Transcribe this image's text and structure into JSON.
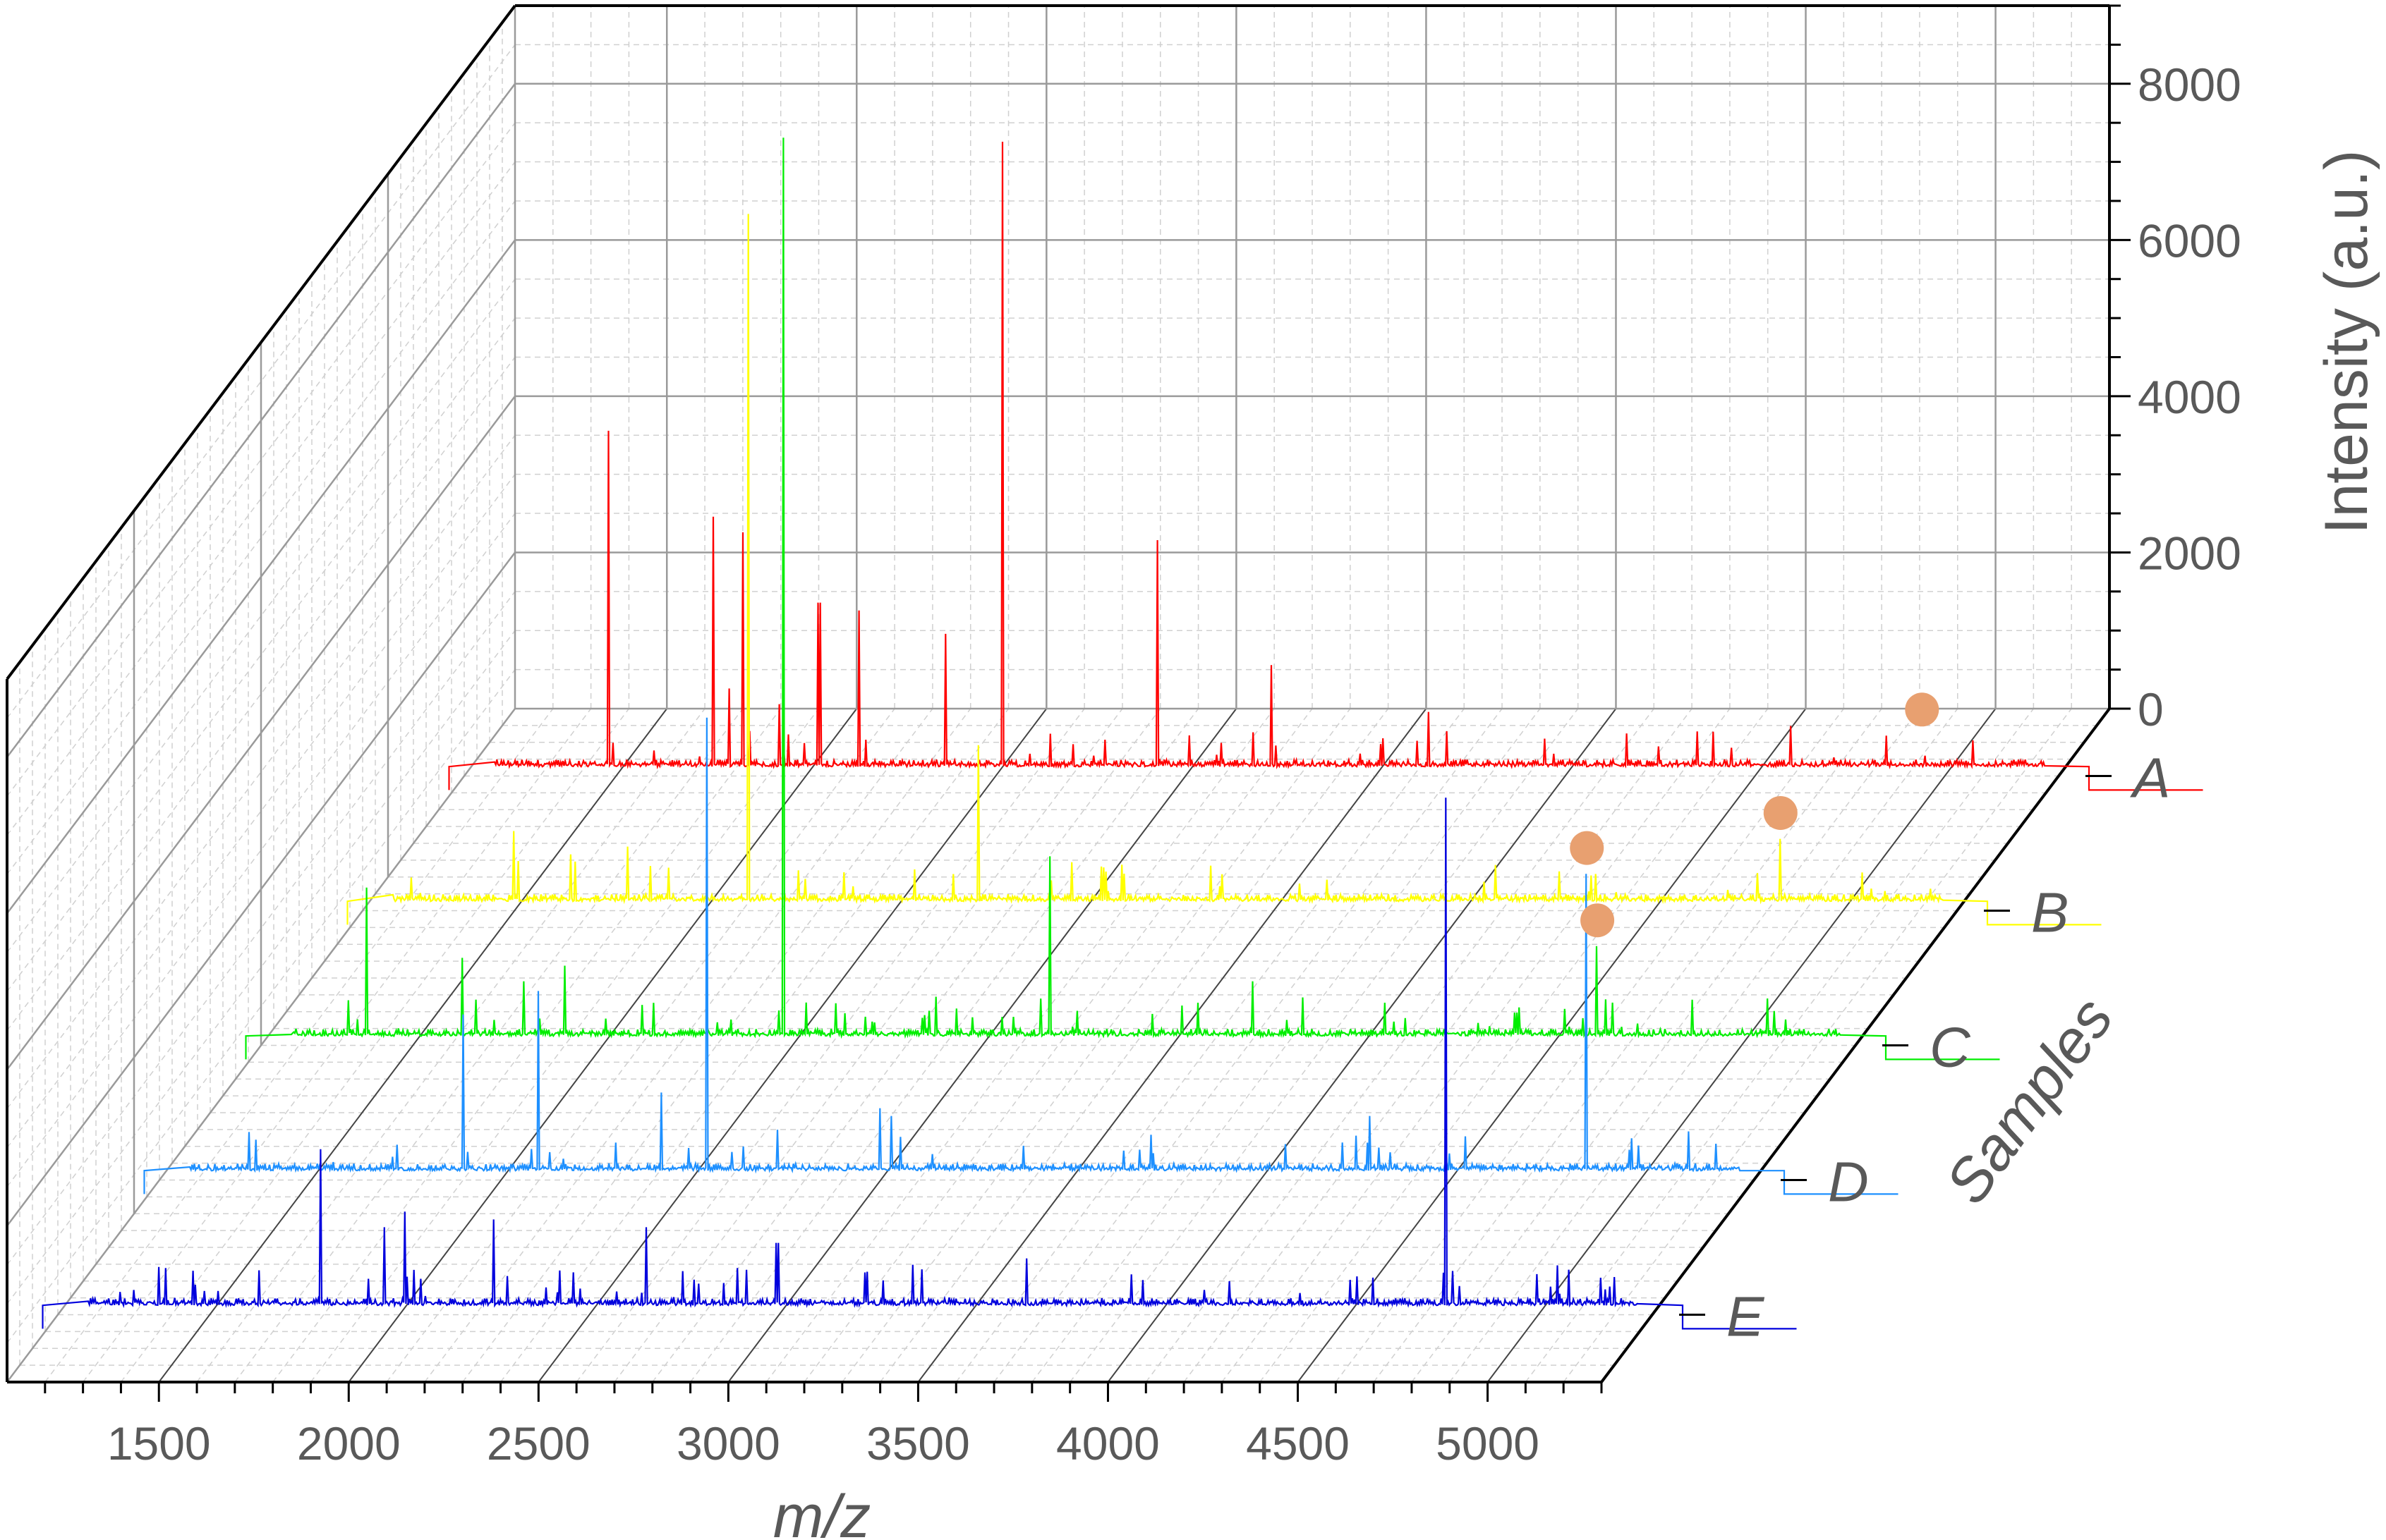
{
  "chart_data": {
    "type": "line",
    "subtype": "3d-waterfall",
    "title": "",
    "xlabel": "m/z",
    "ylabel": "Intensity (a.u.)",
    "zlabel": "Samples",
    "xlim": [
      1100,
      5300
    ],
    "ylim": [
      0,
      9000
    ],
    "x_ticks": [
      1500,
      2000,
      2500,
      3000,
      3500,
      4000,
      4500,
      5000
    ],
    "y_ticks": [
      0,
      2000,
      4000,
      6000,
      8000
    ],
    "grid": true,
    "colors": {
      "A": "#ff0000",
      "B": "#ffff00",
      "C": "#00ee00",
      "D": "#1e90ff",
      "E": "#0000dd",
      "marker": "#e8a070",
      "axis": "#000000",
      "grid_major": "#9a9a9a",
      "grid_minor": "#d0d0d0",
      "text": "#595959"
    },
    "series": [
      {
        "name": "A",
        "range": [
          1100,
          5300
        ],
        "peaks": [
          [
            1480,
            4300
          ],
          [
            1755,
            3200
          ],
          [
            1800,
            1000
          ],
          [
            1835,
            3000
          ],
          [
            1930,
            800
          ],
          [
            2035,
            2100
          ],
          [
            2140,
            2000
          ],
          [
            2368,
            1700
          ],
          [
            2520,
            8000
          ],
          [
            2925,
            2900
          ],
          [
            3225,
            1300
          ],
          [
            3640,
            700
          ]
        ],
        "marker": {
          "x": 4940,
          "y": 400
        }
      },
      {
        "name": "B",
        "range": [
          1100,
          5300
        ],
        "peaks": [
          [
            1150,
            1300
          ],
          [
            1500,
            900
          ],
          [
            1650,
            600
          ],
          [
            1800,
            700
          ],
          [
            2115,
            8800
          ],
          [
            2720,
            2000
          ],
          [
            2970,
            500
          ],
          [
            4350,
            350
          ],
          [
            4835,
            800
          ]
        ],
        "marker": {
          "x": 4835,
          "y": 800
        }
      },
      {
        "name": "C",
        "range": [
          1100,
          5300
        ],
        "peaks": [
          [
            1170,
            2200
          ],
          [
            1380,
            1900
          ],
          [
            1630,
            1000
          ],
          [
            1790,
            700
          ],
          [
            1900,
            900
          ],
          [
            2475,
            11500
          ],
          [
            3180,
            2300
          ],
          [
            3710,
            700
          ],
          [
            4405,
            300
          ],
          [
            4620,
            1150
          ]
        ],
        "marker": {
          "x": 4620,
          "y": 1150
        }
      },
      {
        "name": "D",
        "range": [
          1100,
          5300
        ],
        "peaks": [
          [
            1900,
            2000
          ],
          [
            2100,
            2300
          ],
          [
            2420,
            1000
          ],
          [
            2540,
            5800
          ],
          [
            3000,
            800
          ],
          [
            3030,
            700
          ],
          [
            4290,
            700
          ],
          [
            4860,
            3800
          ]
        ],
        "marker": {
          "x": 4860,
          "y": 3800
        }
      },
      {
        "name": "E",
        "range": [
          1100,
          5300
        ],
        "peaks": [
          [
            1790,
            2000
          ],
          [
            1960,
            1000
          ],
          [
            2015,
            1200
          ],
          [
            2250,
            1100
          ],
          [
            2650,
            1000
          ],
          [
            2995,
            800
          ],
          [
            3650,
            600
          ],
          [
            4755,
            6500
          ],
          [
            4995,
            400
          ]
        ]
      }
    ]
  }
}
